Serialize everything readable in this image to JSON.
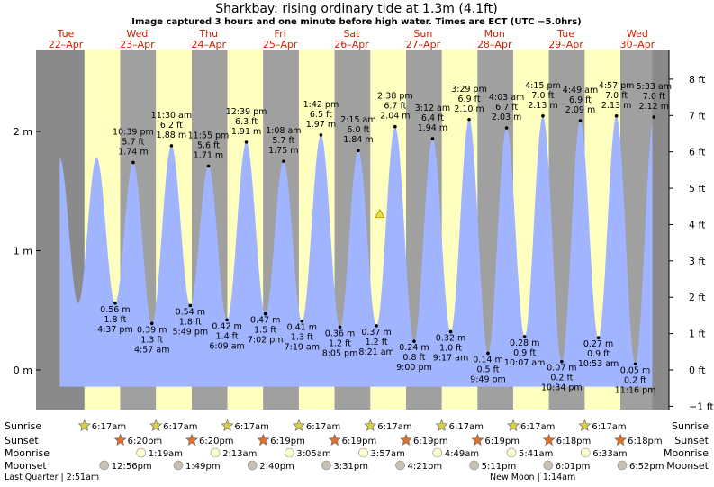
{
  "header": {
    "title": "Sharkbay: rising  ordinary tide at 1.3m (4.1ft)",
    "subtitle": "Image captured 3 hours and one minute before high water. Times are ECT (UTC −5.0hrs)"
  },
  "days": [
    {
      "day": "Tue",
      "date": "22–Apr"
    },
    {
      "day": "Wed",
      "date": "23–Apr"
    },
    {
      "day": "Thu",
      "date": "24–Apr"
    },
    {
      "day": "Fri",
      "date": "25–Apr"
    },
    {
      "day": "Sat",
      "date": "26–Apr"
    },
    {
      "day": "Sun",
      "date": "27–Apr"
    },
    {
      "day": "Mon",
      "date": "28–Apr"
    },
    {
      "day": "Tue",
      "date": "29–Apr"
    },
    {
      "day": "Wed",
      "date": "30–Apr"
    }
  ],
  "chart_data": {
    "type": "area",
    "title": "Sharkbay: rising  ordinary tide at 1.3m (4.1ft)",
    "y_left": {
      "unit": "m",
      "ticks": [
        "0 m",
        "1 m",
        "2 m"
      ],
      "range": [
        -0.35,
        2.65
      ]
    },
    "y_right": {
      "unit": "ft",
      "ticks": [
        "−1 ft",
        "0 ft",
        "1 ft",
        "2 ft",
        "3 ft",
        "4 ft",
        "5 ft",
        "6 ft",
        "7 ft",
        "8 ft"
      ]
    },
    "x_range_hours": [
      -2,
      197
    ],
    "baseline_m": -0.14,
    "current": {
      "hour": 105.5,
      "height_m": 1.3
    },
    "extremes": [
      {
        "hour": 16.6,
        "m": 0.56,
        "type": "low",
        "lines": [
          "0.56 m",
          "1.8 ft",
          "4:37 pm"
        ]
      },
      {
        "hour": 22.65,
        "m": 1.74,
        "type": "high",
        "lines": [
          "10:39 pm",
          "5.7 ft",
          "1.74 m"
        ]
      },
      {
        "hour": 28.95,
        "m": 0.39,
        "type": "low",
        "lines": [
          "0.39 m",
          "1.3 ft",
          "4:57 am"
        ]
      },
      {
        "hour": 35.5,
        "m": 1.88,
        "type": "high",
        "lines": [
          "11:30 am",
          "6.2 ft",
          "1.88 m"
        ]
      },
      {
        "hour": 41.82,
        "m": 0.54,
        "type": "low",
        "lines": [
          "0.54 m",
          "1.8 ft",
          "5:49 pm"
        ]
      },
      {
        "hour": 47.92,
        "m": 1.71,
        "type": "high",
        "lines": [
          "11:55 pm",
          "5.6 ft",
          "1.71 m"
        ]
      },
      {
        "hour": 54.15,
        "m": 0.42,
        "type": "low",
        "lines": [
          "0.42 m",
          "1.4 ft",
          "6:09 am"
        ]
      },
      {
        "hour": 60.65,
        "m": 1.91,
        "type": "high",
        "lines": [
          "12:39 pm",
          "6.3 ft",
          "1.91 m"
        ]
      },
      {
        "hour": 67.03,
        "m": 0.47,
        "type": "low",
        "lines": [
          "0.47 m",
          "1.5 ft",
          "7:02 pm"
        ]
      },
      {
        "hour": 73.13,
        "m": 1.75,
        "type": "high",
        "lines": [
          "1:08 am",
          "5.7 ft",
          "1.75 m"
        ]
      },
      {
        "hour": 79.32,
        "m": 0.41,
        "type": "low",
        "lines": [
          "0.41 m",
          "1.3 ft",
          "7:19 am"
        ]
      },
      {
        "hour": 85.7,
        "m": 1.97,
        "type": "high",
        "lines": [
          "1:42 pm",
          "6.5 ft",
          "1.97 m"
        ]
      },
      {
        "hour": 92.08,
        "m": 0.36,
        "type": "low",
        "lines": [
          "0.36 m",
          "1.2 ft",
          "8:05 pm"
        ]
      },
      {
        "hour": 98.25,
        "m": 1.84,
        "type": "high",
        "lines": [
          "2:15 am",
          "6.0 ft",
          "1.84 m"
        ]
      },
      {
        "hour": 104.35,
        "m": 0.37,
        "type": "low",
        "lines": [
          "0.37 m",
          "1.2 ft",
          "8:21 am"
        ]
      },
      {
        "hour": 110.63,
        "m": 2.04,
        "type": "high",
        "lines": [
          "2:38 pm",
          "6.7 ft",
          "2.04 m"
        ]
      },
      {
        "hour": 117.0,
        "m": 0.24,
        "type": "low",
        "lines": [
          "0.24 m",
          "0.8 ft",
          "9:00 pm"
        ]
      },
      {
        "hour": 123.2,
        "m": 1.94,
        "type": "high",
        "lines": [
          "3:12 am",
          "6.4 ft",
          "1.94 m"
        ]
      },
      {
        "hour": 129.28,
        "m": 0.32,
        "type": "low",
        "lines": [
          "0.32 m",
          "1.0 ft",
          "9:17 am"
        ]
      },
      {
        "hour": 135.48,
        "m": 2.1,
        "type": "high",
        "lines": [
          "3:29 pm",
          "6.9 ft",
          "2.10 m"
        ]
      },
      {
        "hour": 141.82,
        "m": 0.14,
        "type": "low",
        "lines": [
          "0.14 m",
          "0.5 ft",
          "9:49 pm"
        ]
      },
      {
        "hour": 148.05,
        "m": 2.03,
        "type": "high",
        "lines": [
          "4:03 am",
          "6.7 ft",
          "2.03 m"
        ]
      },
      {
        "hour": 154.12,
        "m": 0.28,
        "type": "low",
        "lines": [
          "0.28 m",
          "0.9 ft",
          "10:07 am"
        ]
      },
      {
        "hour": 160.25,
        "m": 2.13,
        "type": "high",
        "lines": [
          "4:15 pm",
          "7.0 ft",
          "2.13 m"
        ]
      },
      {
        "hour": 166.57,
        "m": 0.07,
        "type": "low",
        "lines": [
          "0.07 m",
          "0.2 ft",
          "10:34 pm"
        ]
      },
      {
        "hour": 172.82,
        "m": 2.09,
        "type": "high",
        "lines": [
          "4:49 am",
          "6.9 ft",
          "2.09 m"
        ]
      },
      {
        "hour": 178.88,
        "m": 0.27,
        "type": "low",
        "lines": [
          "0.27 m",
          "0.9 ft",
          "10:53 am"
        ]
      },
      {
        "hour": 184.95,
        "m": 2.13,
        "type": "high",
        "lines": [
          "4:57 pm",
          "7.0 ft",
          "2.13 m"
        ]
      },
      {
        "hour": 191.27,
        "m": 0.05,
        "type": "low",
        "lines": [
          "0.05 m",
          "0.2 ft",
          "11:16 pm"
        ]
      },
      {
        "hour": 197.55,
        "m": 2.12,
        "type": "high",
        "lines": [
          "5:33 am",
          "7.0 ft",
          "2.12 m"
        ]
      }
    ]
  },
  "legend_labels": {
    "sunrise": "Sunrise",
    "sunset": "Sunset",
    "moonrise": "Moonrise",
    "moonset": "Moonset"
  },
  "astro": {
    "sunrise": [
      "6:17am",
      "6:17am",
      "6:17am",
      "6:17am",
      "6:17am",
      "6:17am",
      "6:17am",
      "6:17am"
    ],
    "sunset": [
      "6:20pm",
      "6:20pm",
      "6:19pm",
      "6:19pm",
      "6:19pm",
      "6:19pm",
      "6:18pm",
      "6:18pm"
    ],
    "moonrise": [
      "1:19am",
      "2:13am",
      "3:05am",
      "3:57am",
      "4:49am",
      "5:41am",
      "6:33am"
    ],
    "moonset": [
      "12:56pm",
      "1:49pm",
      "2:40pm",
      "3:31pm",
      "4:21pm",
      "5:11pm",
      "6:01pm",
      "6:52pm"
    ]
  },
  "moon_phase_notes": {
    "left": "Last Quarter | 2:51am",
    "right": "New Moon | 1:14am"
  },
  "colors": {
    "day": "#ffffc0",
    "night": "#a0a0a0",
    "outside": "#8a8a8a",
    "water": "#a0b4ff",
    "day_label": "#cc2200",
    "sunrise_star": "#d8d040",
    "sunset_star": "#e07028",
    "moonrise": "#ffffd0",
    "moonset": "#c8c0b0"
  }
}
